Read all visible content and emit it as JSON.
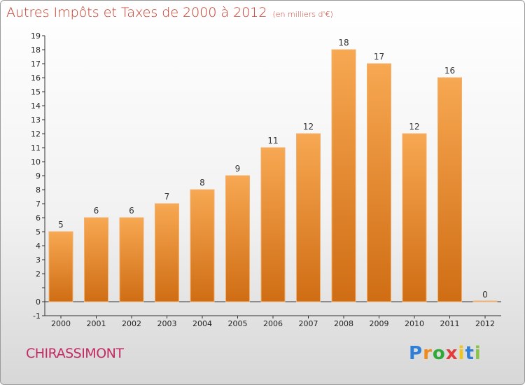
{
  "header": {
    "title": "Autres Impôts et Taxes de 2000 à 2012",
    "subtitle": "(en milliers d'€)"
  },
  "footer": {
    "commune": "CHIRASSIMONT",
    "logo_letters": [
      "P",
      "r",
      "o",
      "x",
      "i",
      "t",
      "i"
    ]
  },
  "colors": {
    "title": "#c83a2a",
    "commune": "#c42a63",
    "bar_light": "#f7a852",
    "bar_dark": "#cf6d14",
    "logo": [
      "#2f7fd6",
      "#f08a1a",
      "#2eaa3a",
      "#e33b3b",
      "#f0c419",
      "#2f7fd6",
      "#8bc34a"
    ]
  },
  "chart_data": {
    "type": "bar",
    "title": "Autres Impôts et Taxes de 2000 à 2012",
    "subtitle": "(en milliers d'€)",
    "xlabel": "",
    "ylabel": "",
    "categories": [
      "2000",
      "2001",
      "2002",
      "2003",
      "2004",
      "2005",
      "2006",
      "2007",
      "2008",
      "2009",
      "2010",
      "2011",
      "2012"
    ],
    "values": [
      5,
      6,
      6,
      7,
      8,
      9,
      11,
      12,
      18,
      17,
      12,
      16,
      0
    ],
    "y_tick_labels": [
      "-1",
      "0",
      "",
      "2",
      "3",
      "4",
      "5",
      "6",
      "7",
      "8",
      "9",
      "10",
      "11",
      "12",
      "13",
      "14",
      "15",
      "16",
      "17",
      "18",
      "19"
    ],
    "ylim": [
      -1,
      19
    ],
    "grid": false,
    "legend": "none"
  }
}
